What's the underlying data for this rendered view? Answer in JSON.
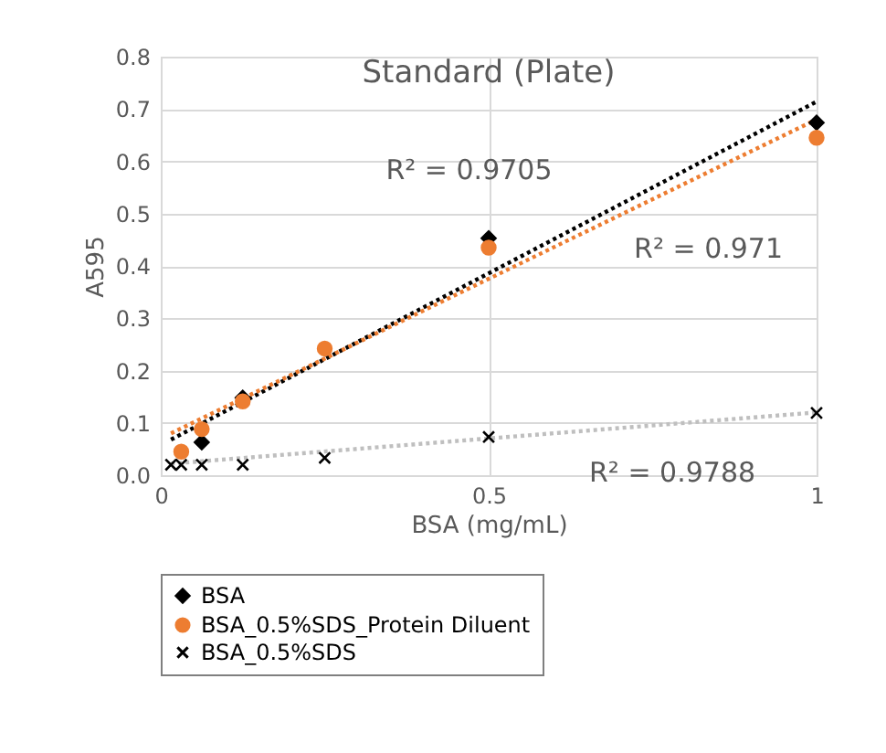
{
  "chart_data": {
    "type": "scatter",
    "title": "Standard (Plate)",
    "xlabel": "BSA (mg/mL)",
    "ylabel": "A595",
    "xlim": [
      0,
      1
    ],
    "ylim": [
      0,
      0.8
    ],
    "xticks": [
      0,
      0.5,
      1
    ],
    "yticks": [
      {
        "value": 0,
        "label": "0.0"
      },
      {
        "value": 0.1,
        "label": "0.1"
      },
      {
        "value": 0.2,
        "label": "0.2"
      },
      {
        "value": 0.3,
        "label": "0.3"
      },
      {
        "value": 0.4,
        "label": "0.4"
      },
      {
        "value": 0.5,
        "label": "0.5"
      },
      {
        "value": 0.6,
        "label": "0.6"
      },
      {
        "value": 0.7,
        "label": "0.7"
      },
      {
        "value": 0.8,
        "label": "0.8"
      }
    ],
    "grid": true,
    "legend": "bottom",
    "series": [
      {
        "name": "BSA",
        "color": "#000000",
        "marker": "diamond",
        "x": [
          0.0625,
          0.125,
          0.5,
          1
        ],
        "values": [
          0.063,
          0.148,
          0.453,
          0.674
        ]
      },
      {
        "name": "BSA_0.5%SDS_Protein Diluent",
        "color": "#ed7d31",
        "marker": "circle",
        "x": [
          0.03125,
          0.0625,
          0.125,
          0.25,
          0.5,
          1
        ],
        "values": [
          0.045,
          0.088,
          0.141,
          0.242,
          0.435,
          0.645
        ]
      },
      {
        "name": "BSA_0.5%SDS",
        "color": "#000000",
        "marker": "cross",
        "x": [
          0.0156,
          0.03125,
          0.0625,
          0.125,
          0.25,
          0.5,
          1
        ],
        "values": [
          0.02,
          0.02,
          0.02,
          0.02,
          0.033,
          0.073,
          0.119
        ]
      },
      {
        "type": "line",
        "color": "#000000",
        "line_style": "dotted",
        "x": [
          0.0156,
          1
        ],
        "values": [
          0.068,
          0.714
        ]
      },
      {
        "type": "line",
        "color": "#ed7d31",
        "line_style": "dotted",
        "x": [
          0.0156,
          1
        ],
        "values": [
          0.08,
          0.68
        ]
      },
      {
        "type": "line",
        "color": "#bfbfbf",
        "line_style": "dotted",
        "x": [
          0.0156,
          1
        ],
        "values": [
          0.022,
          0.12
        ]
      }
    ],
    "annotations": [
      "R² = 0.9705",
      "R² = 0.971",
      "R² = 0.9788"
    ]
  }
}
